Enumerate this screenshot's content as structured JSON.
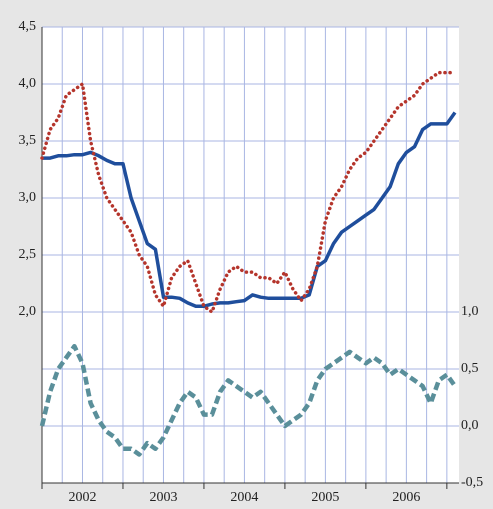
{
  "chart_data": {
    "type": "line",
    "x": [
      2002,
      2002.1,
      2002.2,
      2002.3,
      2002.4,
      2002.5,
      2002.6,
      2002.7,
      2002.8,
      2002.9,
      2003,
      2003.1,
      2003.2,
      2003.3,
      2003.4,
      2003.5,
      2003.6,
      2003.7,
      2003.8,
      2003.9,
      2004,
      2004.1,
      2004.2,
      2004.3,
      2004.4,
      2004.5,
      2004.6,
      2004.7,
      2004.8,
      2004.9,
      2005,
      2005.1,
      2005.2,
      2005.3,
      2005.4,
      2005.5,
      2005.6,
      2005.7,
      2005.8,
      2005.9,
      2006,
      2006.1,
      2006.2,
      2006.3,
      2006.4,
      2006.5,
      2006.6,
      2006.7,
      2006.8,
      2006.9,
      2007,
      2007.1
    ],
    "series": [
      {
        "color": "#1f4e9c",
        "style": "solid",
        "axis": "y",
        "values": [
          3.35,
          3.35,
          3.37,
          3.37,
          3.38,
          3.38,
          3.4,
          3.37,
          3.33,
          3.3,
          3.3,
          3.0,
          2.8,
          2.6,
          2.55,
          2.13,
          2.13,
          2.12,
          2.08,
          2.05,
          2.05,
          2.07,
          2.08,
          2.08,
          2.09,
          2.1,
          2.15,
          2.13,
          2.12,
          2.12,
          2.12,
          2.12,
          2.12,
          2.15,
          2.4,
          2.45,
          2.6,
          2.7,
          2.75,
          2.8,
          2.85,
          2.9,
          3.0,
          3.1,
          3.3,
          3.4,
          3.45,
          3.6,
          3.65,
          3.65,
          3.65,
          3.75
        ]
      },
      {
        "color": "#b5352c",
        "style": "dotted",
        "axis": "y",
        "values": [
          3.35,
          3.6,
          3.7,
          3.9,
          3.95,
          4.0,
          3.5,
          3.2,
          3.0,
          2.9,
          2.8,
          2.7,
          2.5,
          2.4,
          2.15,
          2.05,
          2.3,
          2.4,
          2.45,
          2.25,
          2.05,
          2.0,
          2.2,
          2.35,
          2.4,
          2.35,
          2.35,
          2.3,
          2.3,
          2.25,
          2.35,
          2.2,
          2.1,
          2.2,
          2.4,
          2.8,
          3.0,
          3.1,
          3.25,
          3.35,
          3.4,
          3.5,
          3.6,
          3.7,
          3.8,
          3.85,
          3.9,
          4.0,
          4.05,
          4.1,
          4.1,
          4.1
        ]
      },
      {
        "color": "#5a8f9a",
        "style": "dashed",
        "axis": "y2",
        "values": [
          0,
          0.3,
          0.5,
          0.6,
          0.7,
          0.55,
          0.2,
          0.05,
          -0.05,
          -0.1,
          -0.2,
          -0.2,
          -0.25,
          -0.15,
          -0.2,
          -0.1,
          0.05,
          0.2,
          0.3,
          0.25,
          0.1,
          0.1,
          0.3,
          0.4,
          0.35,
          0.3,
          0.25,
          0.3,
          0.2,
          0.1,
          0,
          0.05,
          0.1,
          0.2,
          0.4,
          0.5,
          0.55,
          0.6,
          0.65,
          0.6,
          0.55,
          0.6,
          0.55,
          0.45,
          0.5,
          0.45,
          0.4,
          0.35,
          0.2,
          0.4,
          0.45,
          0.35
        ]
      }
    ],
    "xlim": [
      2002,
      2007.15
    ],
    "xticks": [
      {
        "value": 2002.5,
        "label": "2002"
      },
      {
        "value": 2003.5,
        "label": "2003"
      },
      {
        "value": 2004.5,
        "label": "2004"
      },
      {
        "value": 2005.5,
        "label": "2005"
      },
      {
        "value": 2006.5,
        "label": "2006"
      }
    ],
    "ylim": [
      0.5,
      4.5
    ],
    "yticks": [
      {
        "value": 2.0,
        "label": "2,0"
      },
      {
        "value": 2.5,
        "label": "2,5"
      },
      {
        "value": 3.0,
        "label": "3,0"
      },
      {
        "value": 3.5,
        "label": "3,5"
      },
      {
        "value": 4.0,
        "label": "4,0"
      },
      {
        "value": 4.5,
        "label": "4,5"
      }
    ],
    "y2lim": [
      -0.5,
      3.5
    ],
    "y2ticks": [
      {
        "value": -0.5,
        "label": "-0,5"
      },
      {
        "value": 0,
        "label": "0,0"
      },
      {
        "value": 0.5,
        "label": "0,5"
      },
      {
        "value": 1.0,
        "label": "1,0"
      }
    ],
    "grid": true
  }
}
